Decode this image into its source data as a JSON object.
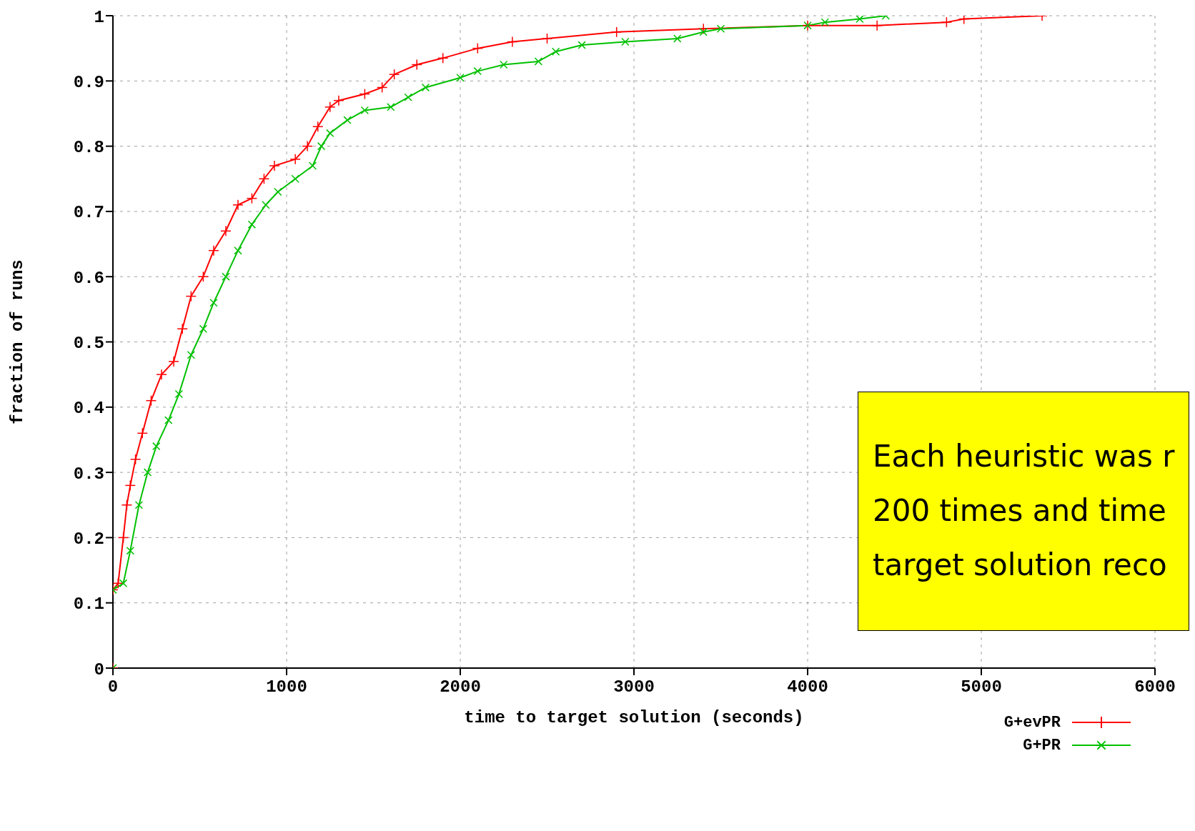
{
  "chart_data": {
    "type": "line",
    "xlabel": "time to target solution (seconds)",
    "ylabel": "fraction of runs",
    "xlim": [
      0,
      6000
    ],
    "xticks": [
      0,
      1000,
      2000,
      3000,
      4000,
      5000,
      6000
    ],
    "ylim": [
      0,
      1
    ],
    "yticks": [
      0,
      0.1,
      0.2,
      0.3,
      0.4,
      0.5,
      0.6,
      0.7,
      0.8,
      0.9,
      1
    ],
    "grid": true,
    "legend": "bottom right",
    "line_style": "solid",
    "annotations": [
      "Each heuristic was r",
      "200 times and time",
      "target solution reco"
    ],
    "series": [
      {
        "name": "G+evPR",
        "color": "#ff0000",
        "marker": "cross",
        "x": [
          0,
          0,
          30,
          60,
          80,
          100,
          130,
          170,
          220,
          280,
          350,
          400,
          450,
          520,
          580,
          650,
          720,
          800,
          870,
          930,
          1050,
          1120,
          1180,
          1250,
          1300,
          1450,
          1550,
          1620,
          1750,
          1900,
          2100,
          2300,
          2500,
          2900,
          3400,
          4000,
          4400,
          4800,
          4900,
          5350
        ],
        "values": [
          0,
          0.12,
          0.13,
          0.2,
          0.25,
          0.28,
          0.32,
          0.36,
          0.41,
          0.45,
          0.47,
          0.52,
          0.57,
          0.6,
          0.64,
          0.67,
          0.71,
          0.72,
          0.75,
          0.77,
          0.78,
          0.8,
          0.83,
          0.86,
          0.87,
          0.88,
          0.89,
          0.91,
          0.925,
          0.935,
          0.95,
          0.96,
          0.965,
          0.975,
          0.98,
          0.985,
          0.985,
          0.99,
          0.995,
          1
        ]
      },
      {
        "name": "G+PR",
        "color": "#00c000",
        "marker": "cross",
        "x": [
          0,
          0,
          60,
          100,
          150,
          200,
          250,
          320,
          380,
          450,
          520,
          580,
          650,
          720,
          800,
          880,
          950,
          1050,
          1150,
          1200,
          1250,
          1350,
          1450,
          1600,
          1700,
          1800,
          2000,
          2100,
          2250,
          2450,
          2550,
          2700,
          2950,
          3250,
          3400,
          3500,
          4000,
          4100,
          4300,
          4450
        ],
        "values": [
          0,
          0.12,
          0.13,
          0.18,
          0.25,
          0.3,
          0.34,
          0.38,
          0.42,
          0.48,
          0.52,
          0.56,
          0.6,
          0.64,
          0.68,
          0.71,
          0.73,
          0.75,
          0.77,
          0.8,
          0.82,
          0.84,
          0.855,
          0.86,
          0.875,
          0.89,
          0.905,
          0.915,
          0.925,
          0.93,
          0.945,
          0.955,
          0.96,
          0.965,
          0.975,
          0.98,
          0.985,
          0.99,
          0.995,
          1
        ]
      }
    ]
  }
}
